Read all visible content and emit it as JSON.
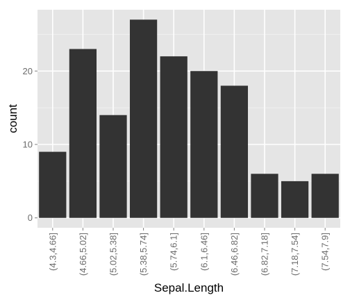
{
  "chart_data": {
    "type": "bar",
    "title": "",
    "xlabel": "Sepal.Length",
    "ylabel": "count",
    "categories": [
      "(4.3,4.66]",
      "(4.66,5.02]",
      "(5.02,5.38]",
      "(5.38,5.74]",
      "(5.74,6.1]",
      "(6.1,6.46]",
      "(6.46,6.82]",
      "(6.82,7.18]",
      "(7.18,7.54]",
      "(7.54,7.9]"
    ],
    "values": [
      9,
      23,
      14,
      27,
      22,
      20,
      18,
      6,
      5,
      6
    ],
    "yticks": [
      0,
      10,
      20
    ],
    "ylim": [
      -1.35,
      28.35
    ],
    "grid": true,
    "colors": {
      "panel_background": "#e5e5e5",
      "major_grid": "#ffffff",
      "minor_grid": "#f2f2f2",
      "bar_fill": "#333333",
      "tick_text": "#6b6b6b",
      "tick_mark": "#7f7f7f"
    }
  }
}
